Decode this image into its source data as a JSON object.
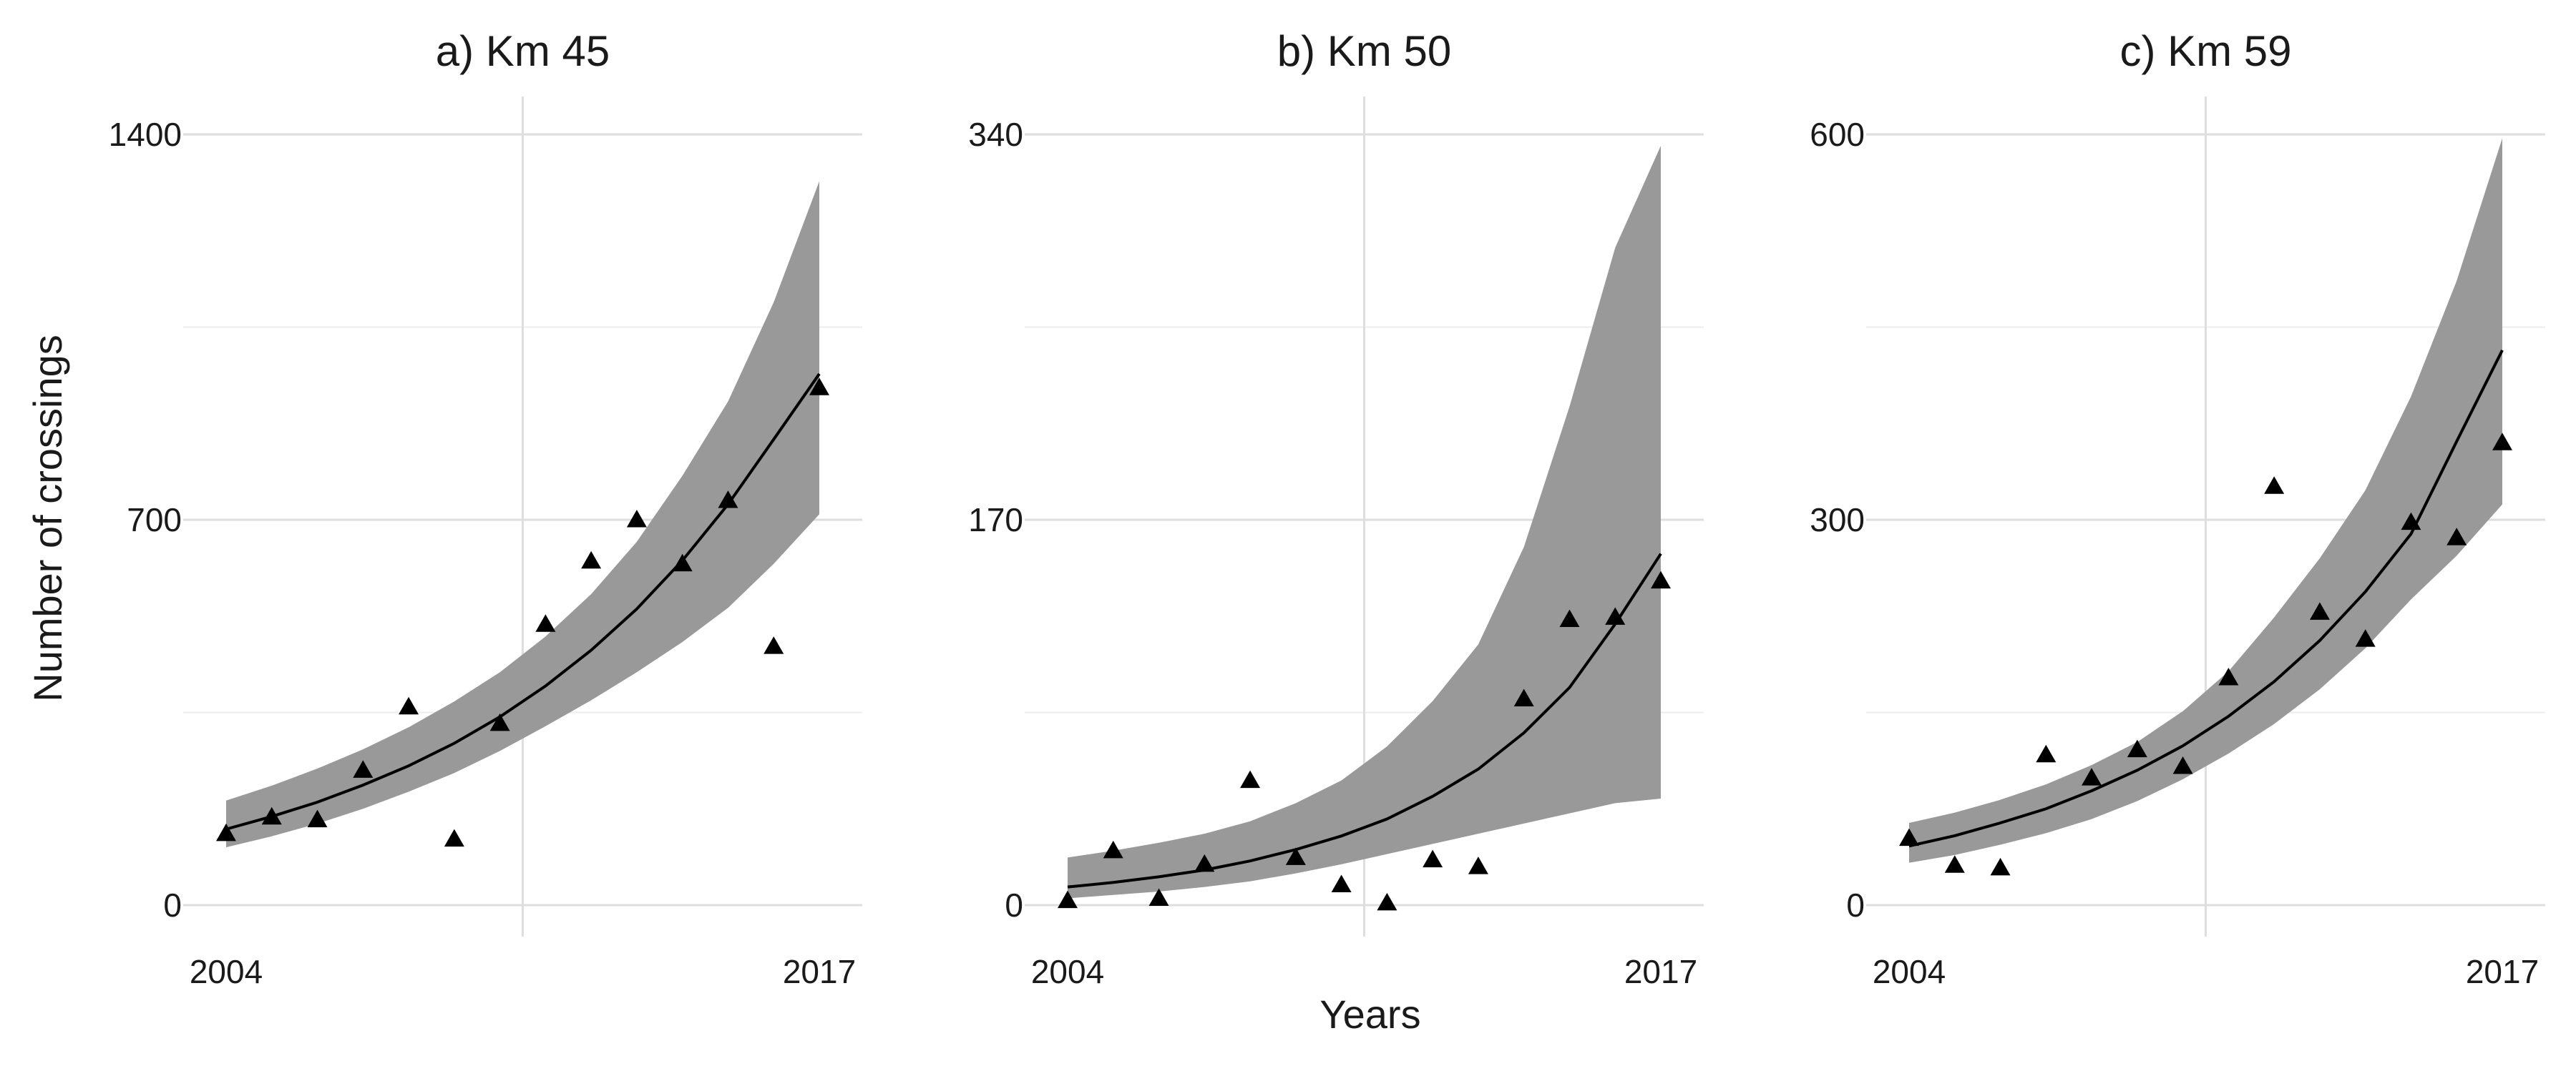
{
  "chart_data": [
    {
      "type": "line",
      "title": "a) Km 45",
      "x": [
        2004,
        2005,
        2006,
        2007,
        2008,
        2009,
        2010,
        2011,
        2012,
        2013,
        2014,
        2015,
        2016,
        2017
      ],
      "ylim": [
        0,
        1400
      ],
      "yticks": [
        0,
        700,
        1400
      ],
      "xticks": [
        2004,
        2017
      ],
      "grid": true,
      "series": [
        {
          "role": "fitted",
          "values": [
            138,
            161,
            187,
            218,
            253,
            294,
            342,
            398,
            463,
            538,
            626,
            728,
            846,
            965
          ]
        },
        {
          "role": "interval_upper",
          "values": [
            190,
            217,
            248,
            283,
            323,
            370,
            423,
            488,
            565,
            660,
            780,
            915,
            1095,
            1315
          ]
        },
        {
          "role": "interval_lower",
          "values": [
            105,
            125,
            148,
            175,
            206,
            240,
            280,
            325,
            372,
            423,
            478,
            540,
            620,
            710
          ]
        },
        {
          "role": "observed",
          "values": [
            130,
            160,
            155,
            245,
            360,
            120,
            330,
            510,
            625,
            700,
            620,
            735,
            470,
            940
          ]
        }
      ]
    },
    {
      "type": "line",
      "title": "b) Km 50",
      "x": [
        2004,
        2005,
        2006,
        2007,
        2008,
        2009,
        2010,
        2011,
        2012,
        2013,
        2014,
        2015,
        2016,
        2017
      ],
      "ylim": [
        0,
        340
      ],
      "yticks": [
        0,
        170,
        340
      ],
      "xticks": [
        2004,
        2017
      ],
      "grid": true,
      "series": [
        {
          "role": "fitted",
          "values": [
            8,
            10,
            12.5,
            15.5,
            19.5,
            24.5,
            30.5,
            38,
            48,
            60,
            76,
            96,
            124,
            155
          ]
        },
        {
          "role": "interval_upper",
          "values": [
            21,
            24,
            27.5,
            31.5,
            37,
            45,
            55,
            70,
            90,
            115,
            158,
            220,
            290,
            335
          ]
        },
        {
          "role": "interval_lower",
          "values": [
            3,
            4.5,
            6,
            8,
            10.5,
            14,
            18,
            22.5,
            27,
            31.5,
            36,
            40.5,
            45,
            47
          ]
        },
        {
          "role": "observed",
          "values": [
            2,
            24,
            3,
            18,
            55,
            21,
            9,
            1,
            20,
            17,
            91,
            126,
            127,
            143
          ]
        }
      ]
    },
    {
      "type": "line",
      "title": "c) Km 59",
      "x": [
        2004,
        2005,
        2006,
        2007,
        2008,
        2009,
        2010,
        2011,
        2012,
        2013,
        2014,
        2015,
        2016,
        2017
      ],
      "ylim": [
        0,
        600
      ],
      "yticks": [
        0,
        300,
        600
      ],
      "xticks": [
        2004,
        2017
      ],
      "grid": true,
      "series": [
        {
          "role": "fitted",
          "values": [
            46,
            54,
            64,
            75,
            89,
            105,
            124,
            147,
            174,
            206,
            244,
            289,
            361,
            432
          ]
        },
        {
          "role": "interval_upper",
          "values": [
            64,
            72,
            82,
            94,
            109,
            127,
            151,
            182,
            224,
            270,
            323,
            396,
            486,
            597
          ]
        },
        {
          "role": "interval_lower",
          "values": [
            33,
            39,
            47,
            56,
            67,
            81,
            98,
            118,
            141,
            168,
            200,
            238,
            272,
            312
          ]
        },
        {
          "role": "observed",
          "values": [
            52,
            31,
            29,
            117,
            99,
            121,
            108,
            177,
            326,
            228,
            207,
            298,
            286,
            360
          ]
        }
      ]
    }
  ],
  "axes": {
    "xlabel": "Years",
    "ylabel": "Number of crossings"
  }
}
